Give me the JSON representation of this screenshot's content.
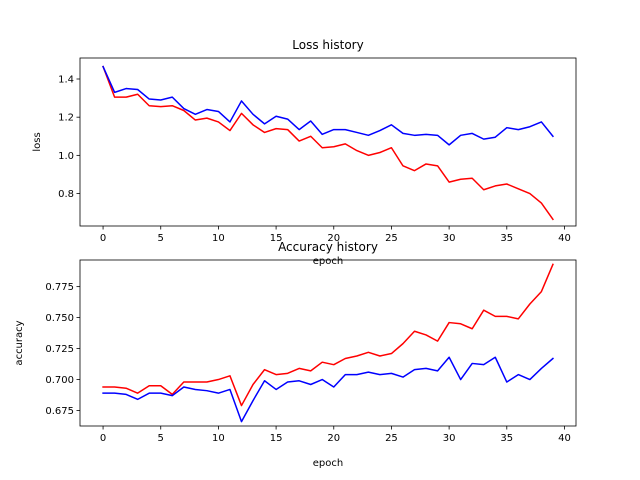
{
  "chart_data": [
    {
      "type": "line",
      "title": "Loss history",
      "xlabel": "epoch",
      "ylabel": "loss",
      "xlim": [
        -2,
        41
      ],
      "ylim": [
        0.63,
        1.51
      ],
      "xticks": [
        0,
        5,
        10,
        15,
        20,
        25,
        30,
        35,
        40
      ],
      "yticks": [
        0.8,
        1.0,
        1.2,
        1.4
      ],
      "ytick_labels": [
        "0.8",
        "1.0",
        "1.2",
        "1.4"
      ],
      "grid": false,
      "x": [
        0,
        1,
        2,
        3,
        4,
        5,
        6,
        7,
        8,
        9,
        10,
        11,
        12,
        13,
        14,
        15,
        16,
        17,
        18,
        19,
        20,
        21,
        22,
        23,
        24,
        25,
        26,
        27,
        28,
        29,
        30,
        31,
        32,
        33,
        34,
        35,
        36,
        37,
        38,
        39
      ],
      "series": [
        {
          "color": "#ff0000",
          "values": [
            1.465,
            1.305,
            1.305,
            1.32,
            1.26,
            1.255,
            1.26,
            1.235,
            1.185,
            1.195,
            1.175,
            1.13,
            1.22,
            1.16,
            1.12,
            1.14,
            1.135,
            1.075,
            1.1,
            1.04,
            1.045,
            1.06,
            1.025,
            1.0,
            1.015,
            1.04,
            0.945,
            0.92,
            0.955,
            0.945,
            0.86,
            0.875,
            0.88,
            0.82,
            0.84,
            0.85,
            0.825,
            0.8,
            0.75,
            0.665
          ]
        },
        {
          "color": "#0000ff",
          "values": [
            1.465,
            1.33,
            1.35,
            1.345,
            1.295,
            1.29,
            1.305,
            1.245,
            1.215,
            1.24,
            1.23,
            1.175,
            1.285,
            1.215,
            1.165,
            1.205,
            1.19,
            1.135,
            1.18,
            1.11,
            1.135,
            1.135,
            1.12,
            1.105,
            1.13,
            1.16,
            1.115,
            1.105,
            1.11,
            1.105,
            1.055,
            1.105,
            1.115,
            1.085,
            1.095,
            1.145,
            1.135,
            1.15,
            1.175,
            1.1
          ]
        }
      ]
    },
    {
      "type": "line",
      "title": "Accuracy history",
      "xlabel": "epoch",
      "ylabel": "accuracy",
      "xlim": [
        -2,
        41
      ],
      "ylim": [
        0.6625,
        0.7965
      ],
      "xticks": [
        0,
        5,
        10,
        15,
        20,
        25,
        30,
        35,
        40
      ],
      "yticks": [
        0.675,
        0.7,
        0.725,
        0.75,
        0.775
      ],
      "ytick_labels": [
        "0.675",
        "0.700",
        "0.725",
        "0.750",
        "0.775"
      ],
      "grid": false,
      "x": [
        0,
        1,
        2,
        3,
        4,
        5,
        6,
        7,
        8,
        9,
        10,
        11,
        12,
        13,
        14,
        15,
        16,
        17,
        18,
        19,
        20,
        21,
        22,
        23,
        24,
        25,
        26,
        27,
        28,
        29,
        30,
        31,
        32,
        33,
        34,
        35,
        36,
        37,
        38,
        39
      ],
      "series": [
        {
          "color": "#ff0000",
          "values": [
            0.694,
            0.694,
            0.693,
            0.689,
            0.695,
            0.695,
            0.688,
            0.698,
            0.698,
            0.698,
            0.7,
            0.703,
            0.679,
            0.696,
            0.708,
            0.704,
            0.705,
            0.709,
            0.707,
            0.714,
            0.712,
            0.717,
            0.719,
            0.722,
            0.719,
            0.721,
            0.729,
            0.739,
            0.736,
            0.731,
            0.746,
            0.745,
            0.741,
            0.756,
            0.751,
            0.751,
            0.749,
            0.761,
            0.771,
            0.793
          ]
        },
        {
          "color": "#0000ff",
          "values": [
            0.689,
            0.689,
            0.688,
            0.684,
            0.689,
            0.689,
            0.687,
            0.694,
            0.692,
            0.691,
            0.689,
            0.692,
            0.666,
            0.683,
            0.699,
            0.692,
            0.698,
            0.699,
            0.696,
            0.7,
            0.694,
            0.704,
            0.704,
            0.706,
            0.704,
            0.705,
            0.702,
            0.708,
            0.709,
            0.707,
            0.718,
            0.7,
            0.713,
            0.712,
            0.718,
            0.698,
            0.704,
            0.7,
            0.709,
            0.717
          ]
        }
      ]
    }
  ]
}
